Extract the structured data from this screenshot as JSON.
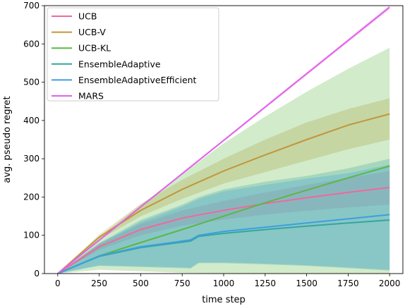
{
  "chart_data": {
    "type": "line",
    "title": "",
    "xlabel": "time step",
    "ylabel": "avg. pseudo regret",
    "xlim": [
      -80,
      2080
    ],
    "ylim": [
      0,
      700
    ],
    "xticks": [
      0,
      250,
      500,
      750,
      1000,
      1250,
      1500,
      1750,
      2000
    ],
    "yticks": [
      0,
      100,
      200,
      300,
      400,
      500,
      600,
      700
    ],
    "grid": false,
    "legend_position": "top-left",
    "series": [
      {
        "name": "UCB",
        "color": "#f1689c",
        "x": [
          0,
          250,
          500,
          750,
          1000,
          1250,
          1500,
          1750,
          2000
        ],
        "y": [
          0,
          70,
          115,
          145,
          165,
          183,
          198,
          212,
          225
        ],
        "band_lower": [
          0,
          62,
          100,
          125,
          141,
          154,
          164,
          173,
          180
        ],
        "band_upper": [
          0,
          78,
          130,
          165,
          190,
          212,
          232,
          250,
          268
        ]
      },
      {
        "name": "UCB-V",
        "color": "#c1963a",
        "x": [
          0,
          250,
          500,
          750,
          1000,
          1250,
          1500,
          1750,
          2000
        ],
        "y": [
          0,
          95,
          165,
          220,
          268,
          310,
          350,
          388,
          417
        ],
        "band_lower": [
          0,
          88,
          150,
          195,
          235,
          265,
          295,
          325,
          350
        ],
        "band_upper": [
          0,
          102,
          182,
          245,
          300,
          350,
          395,
          430,
          458
        ]
      },
      {
        "name": "UCB-KL",
        "color": "#5cb744",
        "x": [
          0,
          250,
          500,
          750,
          1000,
          1250,
          1500,
          1750,
          2000
        ],
        "y": [
          0,
          46,
          81,
          115,
          150,
          185,
          218,
          250,
          281
        ],
        "band_lower": [
          0,
          10,
          6,
          2,
          0,
          0,
          0,
          0,
          0
        ],
        "band_upper": [
          0,
          95,
          180,
          260,
          340,
          410,
          475,
          535,
          590
        ]
      },
      {
        "name": "EnsembleAdaptive",
        "color": "#35a69c",
        "x": [
          0,
          250,
          500,
          750,
          800,
          850,
          1000,
          1250,
          1500,
          1750,
          2000
        ],
        "y": [
          0,
          45,
          68,
          82,
          85,
          97,
          105,
          115,
          124,
          132,
          140
        ],
        "band_lower": [
          0,
          20,
          17,
          14,
          13,
          27,
          27,
          24,
          20,
          14,
          8
        ],
        "band_upper": [
          0,
          80,
          140,
          180,
          190,
          200,
          220,
          240,
          255,
          275,
          300
        ]
      },
      {
        "name": "EnsembleAdaptiveEfficient",
        "color": "#3d9ee0",
        "x": [
          0,
          250,
          500,
          750,
          800,
          850,
          1000,
          1250,
          1500,
          1750,
          2000
        ],
        "y": [
          0,
          46,
          70,
          85,
          88,
          100,
          110,
          121,
          132,
          143,
          154
        ],
        "band_lower": [
          0,
          22,
          19,
          16,
          15,
          29,
          29,
          26,
          22,
          16,
          10
        ],
        "band_upper": [
          0,
          78,
          135,
          175,
          185,
          195,
          215,
          232,
          248,
          262,
          285
        ]
      },
      {
        "name": "MARS",
        "color": "#e262e8",
        "x": [
          0,
          500,
          1000,
          1500,
          2000
        ],
        "y": [
          0,
          174,
          348,
          522,
          696
        ],
        "band_lower": [
          0,
          172,
          345,
          518,
          691
        ],
        "band_upper": [
          0,
          176,
          351,
          526,
          701
        ]
      }
    ]
  }
}
